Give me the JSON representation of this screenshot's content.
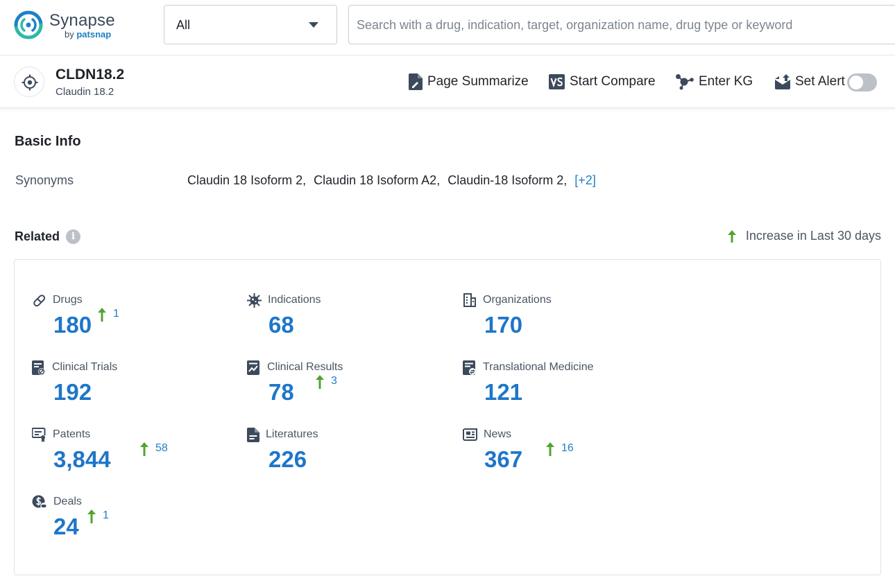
{
  "brand": {
    "name": "Synapse",
    "by_prefix": "by",
    "by_name": "patsnap",
    "colors": {
      "teal": "#2bb9a8",
      "blue": "#1e80c7"
    }
  },
  "search": {
    "scope_value": "All",
    "placeholder": "Search with a drug, indication, target, organization name, drug type or keyword",
    "value": ""
  },
  "target": {
    "title": "CLDN18.2",
    "subtitle": "Claudin 18.2",
    "icon": "target-icon"
  },
  "actions": {
    "summarize": "Page Summarize",
    "compare": "Start Compare",
    "kg": "Enter KG",
    "alert": "Set Alert",
    "alert_enabled": false
  },
  "basic_info": {
    "title": "Basic Info",
    "synonyms_label": "Synonyms",
    "synonyms": [
      "Claudin 18 Isoform 2,",
      "Claudin 18 Isoform A2,",
      "Claudin-18 Isoform 2,"
    ],
    "synonyms_more": "[+2]"
  },
  "related": {
    "title": "Related",
    "legend": "Increase in Last 30 days",
    "colors": {
      "number": "#1e76c8",
      "increase_arrow": "#52a431"
    },
    "items": [
      {
        "label": "Drugs",
        "count": "180",
        "increase": "1",
        "icon": "pill-icon"
      },
      {
        "label": "Indications",
        "count": "68",
        "increase": "",
        "icon": "virus-icon"
      },
      {
        "label": "Organizations",
        "count": "170",
        "increase": "",
        "icon": "building-icon"
      },
      {
        "label": "Clinical Trials",
        "count": "192",
        "increase": "",
        "icon": "clipboard-icon"
      },
      {
        "label": "Clinical Results",
        "count": "78",
        "increase": "3",
        "icon": "chart-doc-icon"
      },
      {
        "label": "Translational Medicine",
        "count": "121",
        "increase": "",
        "icon": "doc-exchange-icon"
      },
      {
        "label": "Patents",
        "count": "3,844",
        "increase": "58",
        "icon": "certificate-icon"
      },
      {
        "label": "Literatures",
        "count": "226",
        "increase": "",
        "icon": "document-icon"
      },
      {
        "label": "News",
        "count": "367",
        "increase": "16",
        "icon": "newspaper-icon"
      },
      {
        "label": "Deals",
        "count": "24",
        "increase": "1",
        "icon": "money-icon"
      }
    ]
  }
}
